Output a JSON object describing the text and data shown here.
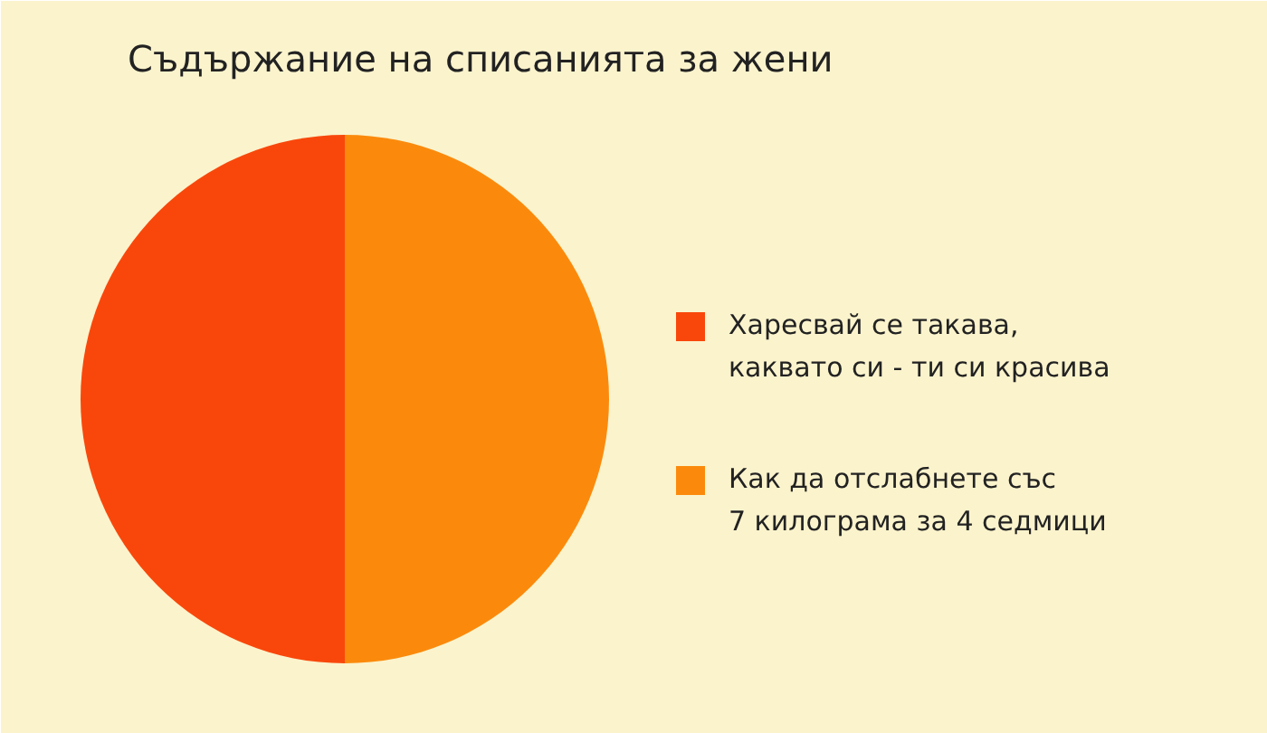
{
  "chart_data": {
    "type": "pie",
    "title": "Съдържание на списанията за жени",
    "categories": [
      "Харесвай се такава,\nкаквато си - ти си красива",
      "Как да отслабнете със\n7 килограма за 4 седмици"
    ],
    "values": [
      50,
      50
    ],
    "colors": [
      "#f9470b",
      "#fb8a0c"
    ],
    "legend": "right"
  }
}
